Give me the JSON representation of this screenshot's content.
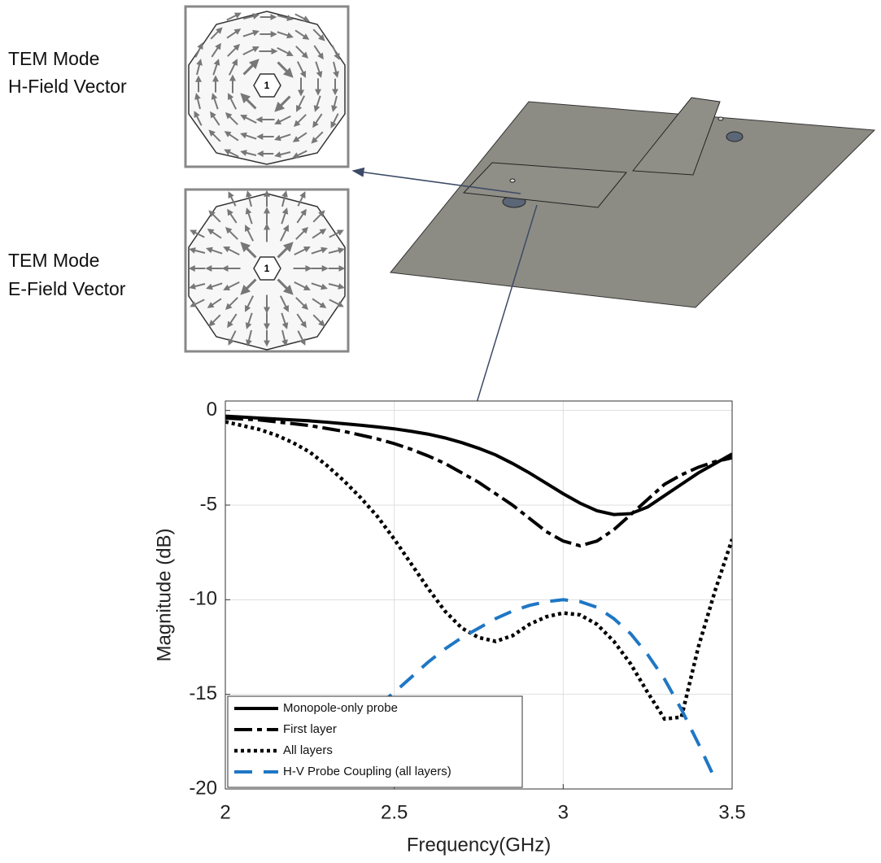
{
  "chart_data": {
    "type": "line",
    "xlabel": "Frequency(GHz)",
    "ylabel": "Magnitude (dB)",
    "x": [
      2,
      2.05,
      2.1,
      2.15,
      2.2,
      2.25,
      2.3,
      2.35,
      2.4,
      2.45,
      2.5,
      2.55,
      2.6,
      2.65,
      2.7,
      2.75,
      2.8,
      2.85,
      2.9,
      2.95,
      3,
      3.05,
      3.1,
      3.15,
      3.2,
      3.25,
      3.3,
      3.35,
      3.4,
      3.45,
      3.5
    ],
    "series": [
      {
        "name": "Monopole-only probe",
        "color": "#000000",
        "style": "solid",
        "values": [
          -0.3,
          -0.35,
          -0.4,
          -0.45,
          -0.5,
          -0.55,
          -0.62,
          -0.7,
          -0.78,
          -0.87,
          -0.97,
          -1.1,
          -1.25,
          -1.45,
          -1.7,
          -2.0,
          -2.35,
          -2.8,
          -3.3,
          -3.85,
          -4.4,
          -4.9,
          -5.3,
          -5.5,
          -5.45,
          -5.1,
          -4.5,
          -3.9,
          -3.3,
          -2.8,
          -2.3
        ]
      },
      {
        "name": "First layer",
        "color": "#000000",
        "style": "dashed",
        "values": [
          -0.4,
          -0.45,
          -0.5,
          -0.6,
          -0.7,
          -0.8,
          -0.95,
          -1.1,
          -1.3,
          -1.5,
          -1.75,
          -2.05,
          -2.4,
          -2.8,
          -3.3,
          -3.8,
          -4.4,
          -5.0,
          -5.7,
          -6.4,
          -6.9,
          -7.15,
          -6.9,
          -6.3,
          -5.5,
          -4.7,
          -3.9,
          -3.4,
          -3.0,
          -2.7,
          -2.5
        ]
      },
      {
        "name": "All layers",
        "color": "#000000",
        "style": "dotted",
        "values": [
          -0.6,
          -0.8,
          -1.0,
          -1.3,
          -1.7,
          -2.2,
          -2.9,
          -3.7,
          -4.6,
          -5.6,
          -6.8,
          -8.1,
          -9.4,
          -10.6,
          -11.5,
          -12.0,
          -12.2,
          -11.9,
          -11.3,
          -10.9,
          -10.7,
          -10.8,
          -11.3,
          -12.2,
          -13.4,
          -14.9,
          -16.3,
          -16.2,
          -12.5,
          -9.5,
          -6.8
        ]
      },
      {
        "name": "H-V Probe Coupling (all layers)",
        "color": "#1f77c4",
        "style": "longdash",
        "values": [
          null,
          null,
          null,
          null,
          null,
          null,
          null,
          null,
          null,
          -15.6,
          -14.9,
          -14.1,
          -13.3,
          -12.6,
          -12.0,
          -11.5,
          -11.0,
          -10.6,
          -10.3,
          -10.1,
          -10.0,
          -10.1,
          -10.4,
          -11.0,
          -11.8,
          -12.9,
          -14.2,
          -15.8,
          -17.6,
          -19.5,
          null
        ]
      }
    ],
    "xlim": [
      2,
      3.5
    ],
    "ylim": [
      -20,
      0.5
    ],
    "xticks": [
      2,
      2.5,
      3,
      3.5
    ],
    "yticks": [
      -20,
      -15,
      -10,
      -5,
      0
    ],
    "grid": true,
    "legend": "lower left"
  },
  "diagrams": {
    "h_field": {
      "title_lines": [
        "TEM Mode",
        "H-Field Vector"
      ],
      "port_label": "1"
    },
    "e_field": {
      "title_lines": [
        "TEM Mode",
        "E-Field Vector"
      ],
      "port_label": "1"
    }
  }
}
